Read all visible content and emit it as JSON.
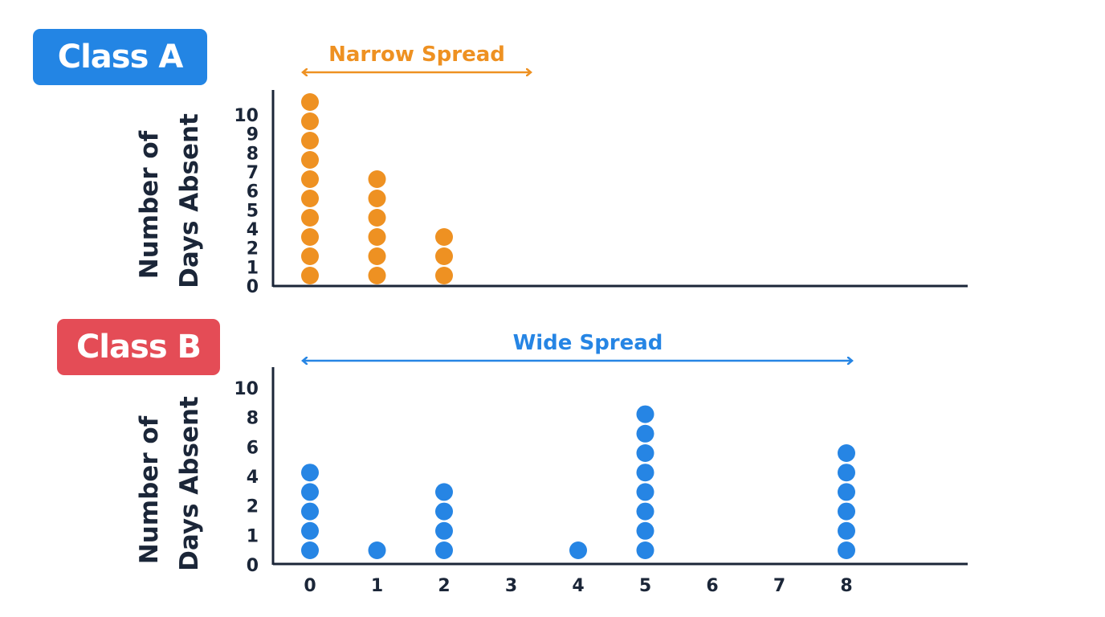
{
  "colors": {
    "class_a": "#ee9122",
    "class_b": "#2685e4",
    "badge_a": "#2385e4",
    "badge_b": "#e44c56",
    "axis": "#1b2638"
  },
  "panels": [
    {
      "badge": "Class A",
      "spread_label": "Narrow Spread",
      "ylabel_lines": [
        "Number of",
        "Days Absent"
      ],
      "y_tick_labels": [
        "0",
        "1",
        "2",
        "4",
        "5",
        "6",
        "7",
        "8",
        "9",
        "10"
      ]
    },
    {
      "badge": "Class B",
      "spread_label": "Wide Spread",
      "ylabel_lines": [
        "Number of",
        "Days Absent"
      ],
      "y_tick_labels": [
        "0",
        "1",
        "2",
        "4",
        "6",
        "8",
        "10"
      ]
    }
  ],
  "x_tick_labels": [
    "0",
    "1",
    "2",
    "3",
    "4",
    "5",
    "6",
    "7",
    "8"
  ],
  "chart_data": [
    {
      "type": "scatter",
      "subtype": "dot plot",
      "title": "Class A",
      "annotation": "Narrow Spread",
      "ylabel": "Number of Days Absent",
      "x": [
        0,
        1,
        2
      ],
      "counts": [
        10,
        6,
        3
      ],
      "xlim": [
        0,
        9
      ],
      "ylim": [
        0,
        10
      ],
      "grid": false,
      "spread_range": [
        0,
        3
      ]
    },
    {
      "type": "scatter",
      "subtype": "dot plot",
      "title": "Class B",
      "annotation": "Wide Spread",
      "ylabel": "Number of Days Absent",
      "xlabel_ticks": [
        0,
        1,
        2,
        3,
        4,
        5,
        6,
        7,
        8
      ],
      "x": [
        0,
        1,
        2,
        4,
        5,
        8
      ],
      "counts": [
        5,
        1,
        4,
        1,
        8,
        6
      ],
      "xlim": [
        0,
        9
      ],
      "ylim": [
        0,
        10
      ],
      "grid": false,
      "spread_range": [
        0,
        8
      ]
    }
  ]
}
